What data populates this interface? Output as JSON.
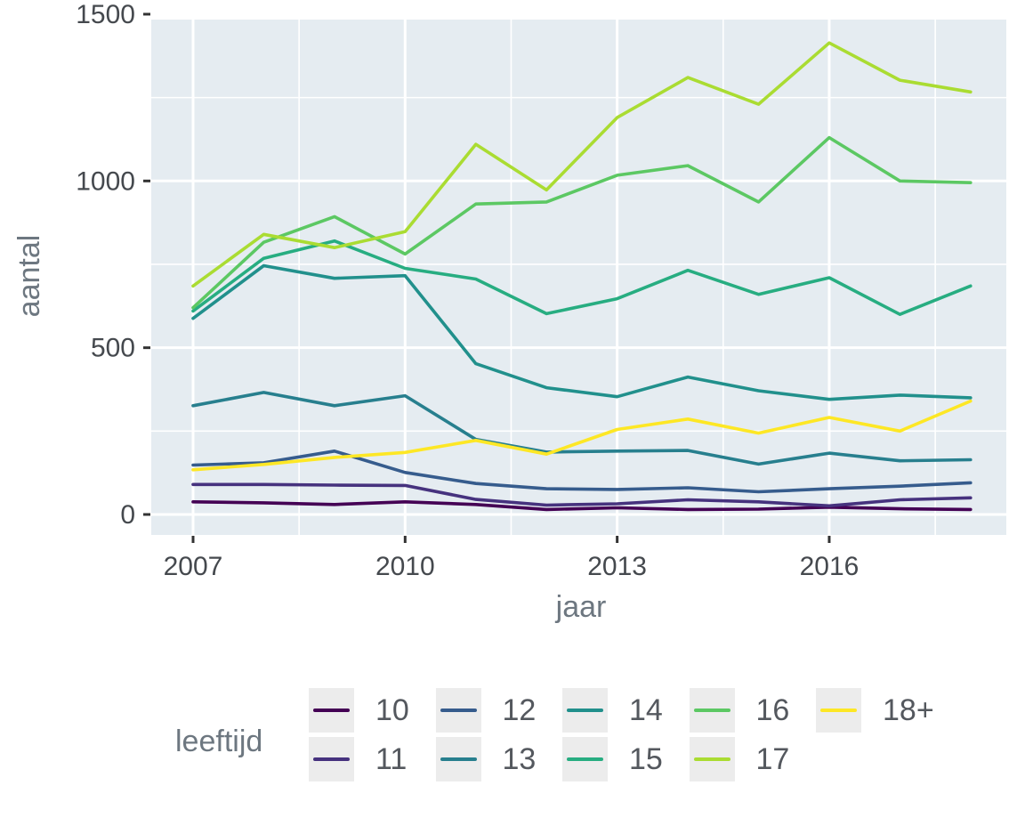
{
  "axes": {
    "y_title": "aantal",
    "x_title": "jaar"
  },
  "colors": {
    "background": "#ffffff",
    "panel_bg": "#e5ecf1",
    "grid": "#ffffff",
    "tick_mark": "#333333",
    "tick_label": "#45494e",
    "axis_title": "#6d7780",
    "legend_key_bg": "#ececec",
    "legend_label": "#54585e"
  },
  "chart_data": {
    "type": "line",
    "title": "",
    "xlabel": "jaar",
    "ylabel": "aantal",
    "legend_title": "leeftijd",
    "legend_position": "bottom",
    "grid": "white major and minor gridlines on light blue-gray panel",
    "x": [
      2007,
      2008,
      2009,
      2010,
      2011,
      2012,
      2013,
      2014,
      2015,
      2016,
      2017,
      2018
    ],
    "x_tick_values": [
      2007,
      2010,
      2013,
      2016
    ],
    "x_tick_labels": [
      "2007",
      "2010",
      "2013",
      "2016"
    ],
    "x_minor_ticks": [
      2008.5,
      2011.5,
      2014.5,
      2017.5
    ],
    "y_tick_values": [
      0,
      500,
      1000,
      1500
    ],
    "y_tick_labels": [
      "0",
      "500",
      "1000",
      "1500"
    ],
    "y_minor_ticks": [
      250,
      750,
      1250
    ],
    "xlim": [
      2006.45,
      2018.55
    ],
    "ylim": [
      -60,
      1485
    ],
    "series": [
      {
        "name": "10",
        "color": "#440154",
        "values": [
          38,
          35,
          30,
          38,
          30,
          15,
          20,
          15,
          16,
          22,
          17,
          15
        ]
      },
      {
        "name": "11",
        "color": "#46327E",
        "values": [
          90,
          90,
          88,
          87,
          45,
          28,
          32,
          44,
          38,
          26,
          44,
          50
        ]
      },
      {
        "name": "12",
        "color": "#365C8D",
        "values": [
          148,
          155,
          190,
          126,
          93,
          77,
          75,
          80,
          68,
          77,
          85,
          95
        ]
      },
      {
        "name": "13",
        "color": "#277F8E",
        "values": [
          326,
          366,
          326,
          356,
          225,
          187,
          190,
          192,
          151,
          184,
          161,
          164
        ]
      },
      {
        "name": "14",
        "color": "#21908C",
        "values": [
          588,
          746,
          708,
          716,
          452,
          380,
          353,
          412,
          371,
          345,
          358,
          350
        ]
      },
      {
        "name": "15",
        "color": "#27AD81",
        "values": [
          610,
          768,
          820,
          738,
          706,
          602,
          647,
          732,
          660,
          710,
          600,
          685
        ]
      },
      {
        "name": "16",
        "color": "#5CC863",
        "values": [
          620,
          816,
          893,
          781,
          931,
          937,
          1017,
          1046,
          937,
          1130,
          1000,
          995
        ]
      },
      {
        "name": "17",
        "color": "#AADC32",
        "values": [
          685,
          840,
          800,
          848,
          1110,
          973,
          1190,
          1310,
          1230,
          1414,
          1302,
          1267
        ]
      },
      {
        "name": "18+",
        "color": "#FDE725",
        "values": [
          134,
          150,
          171,
          186,
          222,
          181,
          255,
          286,
          244,
          291,
          250,
          340
        ]
      }
    ]
  }
}
